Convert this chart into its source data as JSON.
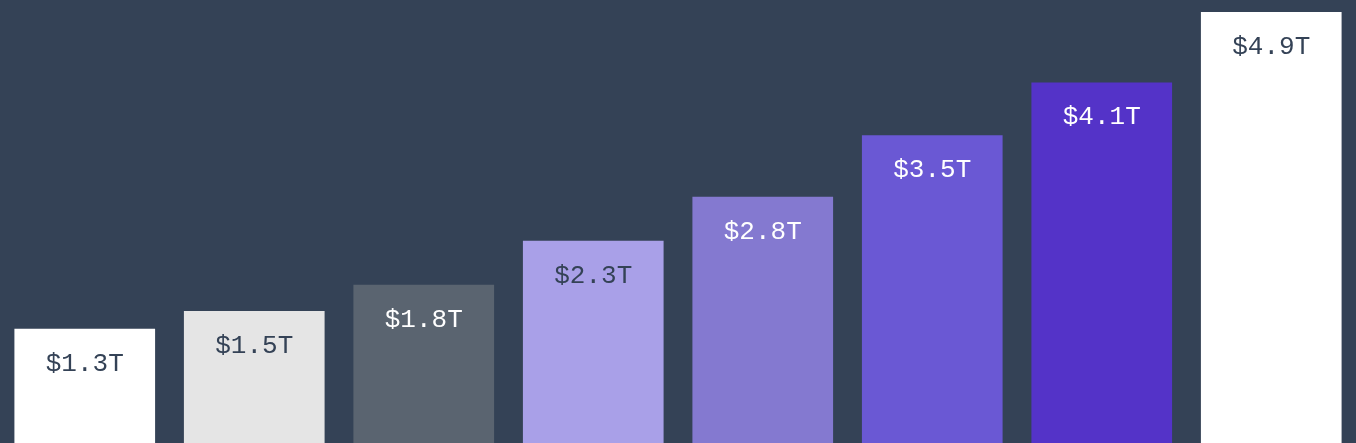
{
  "chart_data": {
    "type": "bar",
    "categories": [
      null,
      null,
      null,
      null,
      null,
      null,
      null,
      null
    ],
    "values": [
      1.3,
      1.5,
      1.8,
      2.3,
      2.8,
      3.5,
      4.1,
      4.9
    ],
    "colors": [
      "#ffffff",
      "#e5e5e5",
      "#5a6470",
      "#a9a0e8",
      "#8479d0",
      "#6a58d4",
      "#5433c8",
      "#ffffff"
    ],
    "value_labels": [
      "$1.3T",
      "$1.5T",
      "$1.8T",
      "$2.3T",
      "$2.8T",
      "$3.5T",
      "$4.1T",
      "$4.9T"
    ]
  }
}
